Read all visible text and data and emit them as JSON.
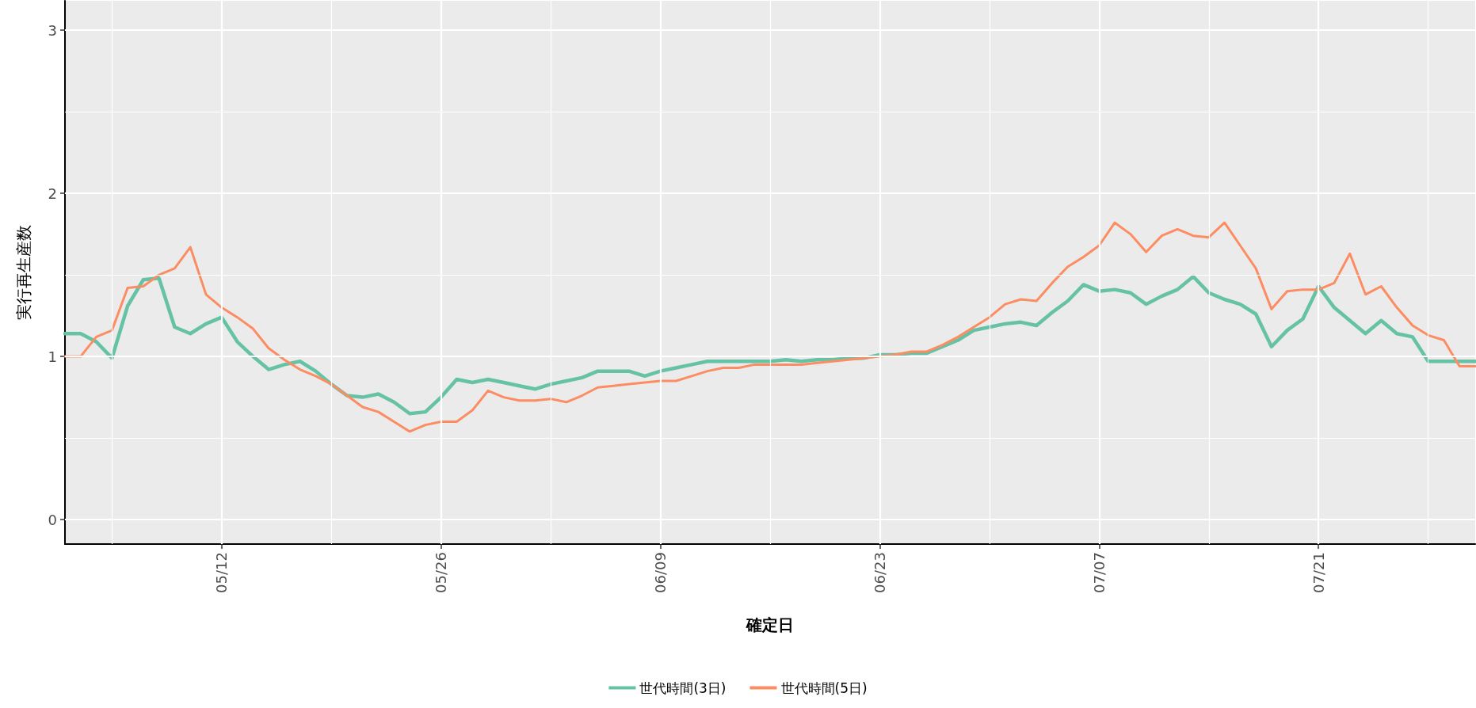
{
  "chart_data": {
    "type": "line",
    "xlabel": "確定日",
    "ylabel": "実行再生産数",
    "x": [
      "--05-02",
      "--05-03",
      "--05-04",
      "--05-05",
      "--05-06",
      "--05-07",
      "--05-08",
      "--05-09",
      "--05-10",
      "--05-11",
      "--05-12",
      "--05-13",
      "--05-14",
      "--05-15",
      "--05-16",
      "--05-17",
      "--05-18",
      "--05-19",
      "--05-20",
      "--05-21",
      "--05-22",
      "--05-23",
      "--05-24",
      "--05-25",
      "--05-26",
      "--05-27",
      "--05-28",
      "--05-29",
      "--05-30",
      "--05-31",
      "--06-01",
      "--06-02",
      "--06-03",
      "--06-04",
      "--06-05",
      "--06-06",
      "--06-07",
      "--06-08",
      "--06-09",
      "--06-10",
      "--06-11",
      "--06-12",
      "--06-13",
      "--06-14",
      "--06-15",
      "--06-16",
      "--06-17",
      "--06-18",
      "--06-19",
      "--06-20",
      "--06-21",
      "--06-22",
      "--06-23",
      "--06-24",
      "--06-25",
      "--06-26",
      "--06-27",
      "--06-28",
      "--06-29",
      "--06-30",
      "--07-01",
      "--07-02",
      "--07-03",
      "--07-04",
      "--07-05",
      "--07-06",
      "--07-07",
      "--07-08",
      "--07-09",
      "--07-10",
      "--07-11",
      "--07-12",
      "--07-13",
      "--07-14",
      "--07-15",
      "--07-16",
      "--07-17",
      "--07-18",
      "--07-19",
      "--07-20",
      "--07-21",
      "--07-22",
      "--07-23",
      "--07-24",
      "--07-25",
      "--07-26",
      "--07-27",
      "--07-28",
      "--07-29",
      "--07-30",
      "--07-31"
    ],
    "series": [
      {
        "name": "世代時間(3日)",
        "color": "#66c2a5",
        "values": [
          1.14,
          1.14,
          1.09,
          0.99,
          1.31,
          1.47,
          1.48,
          1.18,
          1.14,
          1.2,
          1.24,
          1.09,
          1.0,
          0.92,
          0.95,
          0.97,
          0.91,
          0.83,
          0.76,
          0.75,
          0.77,
          0.72,
          0.65,
          0.66,
          0.75,
          0.86,
          0.84,
          0.86,
          0.84,
          0.82,
          0.8,
          0.83,
          0.85,
          0.87,
          0.91,
          0.91,
          0.91,
          0.88,
          0.91,
          0.93,
          0.95,
          0.97,
          0.97,
          0.97,
          0.97,
          0.97,
          0.98,
          0.97,
          0.98,
          0.98,
          0.99,
          0.99,
          1.01,
          1.01,
          1.02,
          1.02,
          1.06,
          1.1,
          1.16,
          1.18,
          1.2,
          1.21,
          1.19,
          1.27,
          1.34,
          1.44,
          1.4,
          1.41,
          1.39,
          1.32,
          1.37,
          1.41,
          1.49,
          1.39,
          1.35,
          1.32,
          1.26,
          1.06,
          1.16,
          1.23,
          1.43,
          1.3,
          1.22,
          1.14,
          1.22,
          1.14,
          1.12,
          0.97,
          0.97,
          0.97,
          0.97
        ]
      },
      {
        "name": "世代時間(5日)",
        "color": "#fc8d62",
        "values": [
          1.0,
          1.0,
          1.12,
          1.16,
          1.42,
          1.43,
          1.5,
          1.54,
          1.67,
          1.38,
          1.3,
          1.24,
          1.17,
          1.05,
          0.98,
          0.92,
          0.88,
          0.83,
          0.76,
          0.69,
          0.66,
          0.6,
          0.54,
          0.58,
          0.6,
          0.6,
          0.67,
          0.79,
          0.75,
          0.73,
          0.73,
          0.74,
          0.72,
          0.76,
          0.81,
          0.82,
          0.83,
          0.84,
          0.85,
          0.85,
          0.88,
          0.91,
          0.93,
          0.93,
          0.95,
          0.95,
          0.95,
          0.95,
          0.96,
          0.97,
          0.98,
          0.99,
          1.0,
          1.01,
          1.03,
          1.03,
          1.07,
          1.12,
          1.18,
          1.24,
          1.32,
          1.35,
          1.34,
          1.45,
          1.55,
          1.61,
          1.68,
          1.82,
          1.75,
          1.64,
          1.74,
          1.78,
          1.74,
          1.73,
          1.82,
          1.68,
          1.54,
          1.29,
          1.4,
          1.41,
          1.41,
          1.45,
          1.63,
          1.38,
          1.43,
          1.3,
          1.19,
          1.13,
          1.1,
          0.94,
          0.94
        ]
      }
    ],
    "xlim": [
      "--05-02",
      "--07-31"
    ],
    "xticks": [
      {
        "value": "--05-05",
        "label": null
      },
      {
        "value": "--05-12",
        "label": "05/12"
      },
      {
        "value": "--05-19",
        "label": null
      },
      {
        "value": "--05-26",
        "label": "05/26"
      },
      {
        "value": "--06-02",
        "label": null
      },
      {
        "value": "--06-09",
        "label": "06/09"
      },
      {
        "value": "--06-16",
        "label": null
      },
      {
        "value": "--06-23",
        "label": "06/23"
      },
      {
        "value": "--06-30",
        "label": null
      },
      {
        "value": "--07-07",
        "label": "07/07"
      },
      {
        "value": "--07-14",
        "label": null
      },
      {
        "value": "--07-21",
        "label": "07/21"
      },
      {
        "value": "--07-28",
        "label": null
      }
    ],
    "ylim": [
      -0.15,
      3.18
    ],
    "yticks": [
      0,
      {
        "value": 0.5,
        "label": null
      },
      1,
      {
        "value": 1.5,
        "label": null
      },
      2,
      {
        "value": 2.5,
        "label": null
      },
      3
    ],
    "grid": true,
    "legend": "bottom",
    "marker": "none",
    "line_style": "solid"
  }
}
